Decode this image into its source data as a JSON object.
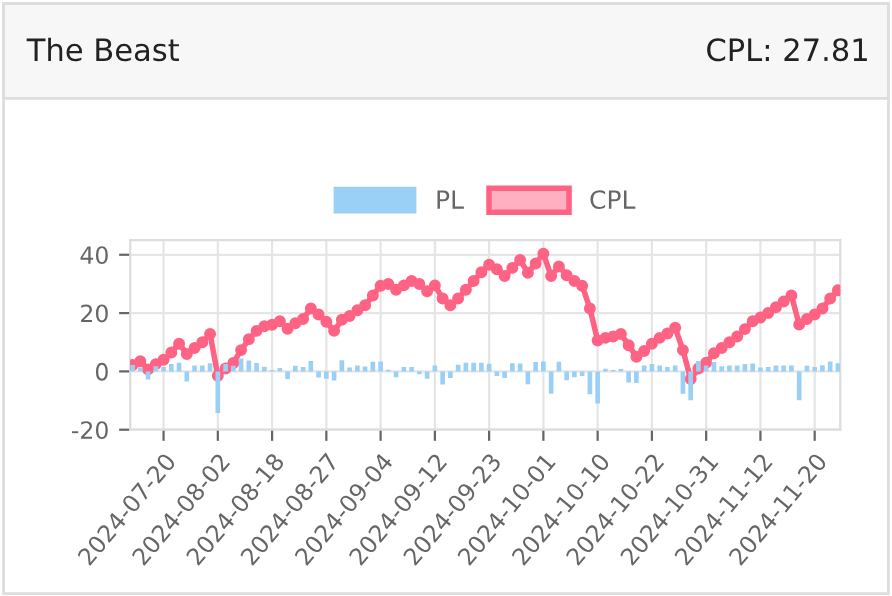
{
  "chart_data": {
    "type": "bar",
    "title": "The Beast",
    "subtitle": "CPL: 27.81",
    "categories": [
      null,
      null,
      null,
      null,
      "2024-07-20",
      null,
      null,
      null,
      null,
      null,
      null,
      "2024-08-02",
      null,
      null,
      null,
      null,
      null,
      null,
      "2024-08-18",
      null,
      null,
      null,
      null,
      null,
      null,
      "2024-08-27",
      null,
      null,
      null,
      null,
      null,
      null,
      "2024-09-04",
      null,
      null,
      null,
      null,
      null,
      null,
      "2024-09-12",
      null,
      null,
      null,
      null,
      null,
      null,
      "2024-09-23",
      null,
      null,
      null,
      null,
      null,
      null,
      "2024-10-01",
      null,
      null,
      null,
      null,
      null,
      null,
      "2024-10-10",
      null,
      null,
      null,
      null,
      null,
      null,
      "2024-10-22",
      null,
      null,
      null,
      null,
      null,
      null,
      "2024-10-31",
      null,
      null,
      null,
      null,
      null,
      null,
      "2024-11-12",
      null,
      null,
      null,
      null,
      null,
      null,
      "2024-11-20",
      null,
      null,
      null
    ],
    "series": [
      {
        "name": "PL",
        "color": "#9ad0f5",
        "values": [
          2.2,
          1.3,
          -2.8,
          1.8,
          1.5,
          2.5,
          3.0,
          -3.5,
          2.0,
          2.0,
          2.8,
          -14.3,
          2.5,
          1.9,
          4.4,
          3.7,
          2.9,
          1.6,
          0.5,
          1.2,
          -2.6,
          1.9,
          1.5,
          3.6,
          -2.1,
          -2.5,
          -3.1,
          3.8,
          1.3,
          2.0,
          1.7,
          3.3,
          3.4,
          0.6,
          -2.0,
          1.5,
          1.5,
          -1.0,
          -2.5,
          2.0,
          -4.5,
          -2.3,
          2.3,
          3.0,
          3.0,
          3.0,
          2.6,
          -1.6,
          -2.3,
          2.8,
          2.7,
          -4.4,
          3.2,
          3.4,
          -7.7,
          3.3,
          -3.0,
          -2.0,
          -1.6,
          -7.8,
          -11.0,
          0.9,
          0.5,
          0.8,
          -3.8,
          -4.0,
          2.0,
          2.5,
          2.0,
          1.5,
          2.0,
          -7.7,
          -9.9,
          3.6,
          2.0,
          3.2,
          1.8,
          2.0,
          2.0,
          2.5,
          2.7,
          1.3,
          1.5,
          2.0,
          2.0,
          2.0,
          -9.9,
          1.9,
          1.5,
          2.1,
          3.4,
          2.8
        ]
      },
      {
        "name": "CPL",
        "type": "line",
        "color": "#ff6384",
        "marker": "circle",
        "values": [
          2.2,
          3.5,
          0.7,
          2.5,
          4.0,
          6.5,
          9.5,
          6.0,
          8.0,
          10.0,
          12.8,
          -1.5,
          1.0,
          2.9,
          7.3,
          11.0,
          13.9,
          15.5,
          16.0,
          17.2,
          14.6,
          16.5,
          18.0,
          21.6,
          19.5,
          17.0,
          13.9,
          17.7,
          19.0,
          21.0,
          22.7,
          26.0,
          29.4,
          30.0,
          28.0,
          29.5,
          31.0,
          30.0,
          27.5,
          29.5,
          25.0,
          22.7,
          25.0,
          28.0,
          31.0,
          34.0,
          36.6,
          35.0,
          32.7,
          35.5,
          38.2,
          33.8,
          37.0,
          40.4,
          32.7,
          36.0,
          33.0,
          31.0,
          29.4,
          21.6,
          10.6,
          11.5,
          12.0,
          12.8,
          9.0,
          5.0,
          7.0,
          9.5,
          11.5,
          13.0,
          15.0,
          7.3,
          -2.6,
          1.0,
          3.0,
          6.2,
          8.0,
          10.0,
          12.0,
          14.5,
          17.2,
          18.5,
          20.0,
          22.0,
          24.0,
          26.0,
          16.1,
          18.0,
          19.5,
          21.6,
          25.0,
          27.8
        ]
      }
    ],
    "ylim": [
      -20,
      45
    ],
    "yticks": [
      -20,
      0,
      20,
      40
    ],
    "grid": true,
    "legend": "top"
  }
}
